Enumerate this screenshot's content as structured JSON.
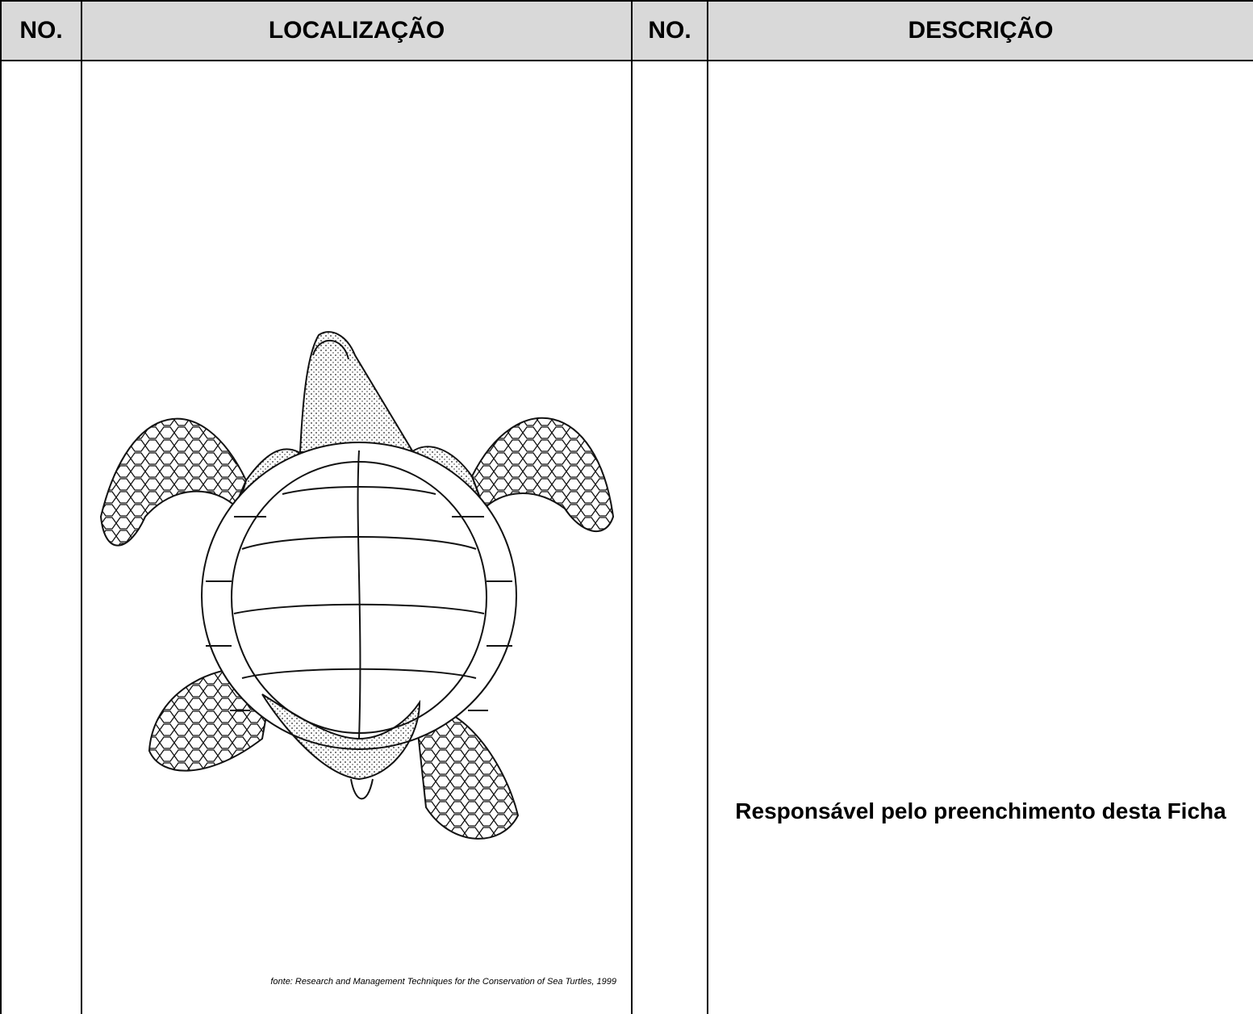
{
  "table": {
    "headers": [
      "NO.",
      "LOCALIZAÇÃO",
      "NO.",
      "DESCRIÇÃO"
    ]
  },
  "figure": {
    "caption": "fonte: Research and Management Techniques for the Conservation of Sea Turtles, 1999"
  },
  "signature": {
    "label": "Responsável pelo preenchimento desta Ficha"
  }
}
